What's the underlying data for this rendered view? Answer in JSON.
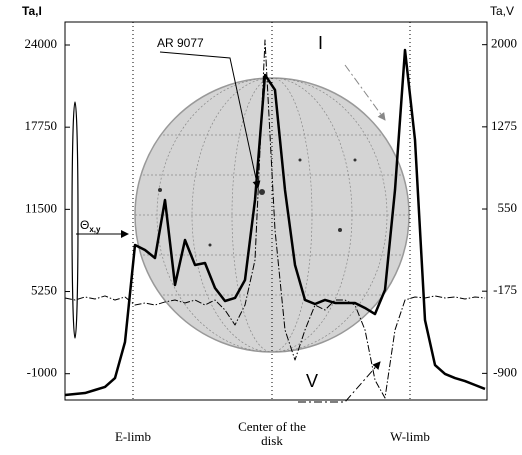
{
  "chart_data": {
    "type": "line",
    "y_label": "Ta,I",
    "y2_label": "Ta,V",
    "ylim": [
      -3000,
      25750
    ],
    "yticks": [
      -1000,
      5250,
      11500,
      17750,
      24000
    ],
    "y2lim": [
      -1135,
      2200
    ],
    "y2ticks": [
      -900,
      -175,
      550,
      1275,
      2000
    ],
    "x_labels": [
      "E-limb",
      "Center of the disk",
      "W-limb"
    ],
    "annotations": [
      "AR 9077",
      "I",
      "V"
    ],
    "theta": {
      "symbol": "Θ",
      "sub": "x,y"
    },
    "series": [
      {
        "name": "I",
        "color": "#000000",
        "values": [
          -2620,
          -2540,
          -2470,
          -2240,
          -2010,
          -1330,
          1410,
          8790,
          8410,
          7800,
          12210,
          5750,
          9170,
          7270,
          7420,
          5520,
          4530,
          4760,
          6130,
          12210,
          21720,
          20580,
          12970,
          7270,
          4610,
          4300,
          4610,
          4380,
          4380,
          4380,
          4000,
          3540,
          5370,
          12970,
          23620,
          16780,
          3080,
          -340,
          -1020,
          -1330,
          -1560,
          -1860,
          -2160
        ]
      },
      {
        "name": "V",
        "color": "#000000",
        "axis": "y2",
        "values": [
          -235,
          -253,
          -226,
          -244,
          -217,
          -253,
          -226,
          -297,
          -279,
          -297,
          -270,
          -253,
          -279,
          -253,
          -297,
          -253,
          -341,
          -473,
          -297,
          100,
          2041,
          365,
          -517,
          -782,
          -517,
          -297,
          -341,
          -253,
          -253,
          -297,
          -517,
          -959,
          -1117,
          -517,
          -253,
          -226,
          -235,
          -217,
          -235,
          -226,
          -244,
          -226,
          -235
        ]
      }
    ]
  }
}
